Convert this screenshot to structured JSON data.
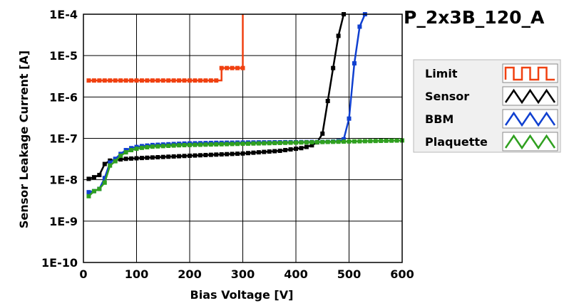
{
  "chart_data": {
    "type": "line",
    "title": "P_2x3B_120_A",
    "xlabel": "Bias Voltage [V]",
    "ylabel": "Sensor Leakage Current [A]",
    "xlim": [
      0,
      600
    ],
    "ylim": [
      1e-10,
      0.0001
    ],
    "y_scale": "log",
    "grid": true,
    "legend_position": "right",
    "x_ticks": [
      {
        "value": 0,
        "label": "0"
      },
      {
        "value": 100,
        "label": "100"
      },
      {
        "value": 200,
        "label": "200"
      },
      {
        "value": 300,
        "label": "300"
      },
      {
        "value": 400,
        "label": "400"
      },
      {
        "value": 500,
        "label": "500"
      },
      {
        "value": 600,
        "label": "600"
      }
    ],
    "y_ticks": [
      {
        "value": 1e-10,
        "label": "1E-10"
      },
      {
        "value": 1e-09,
        "label": "1E-9"
      },
      {
        "value": 1e-08,
        "label": "1E-8"
      },
      {
        "value": 1e-07,
        "label": "1E-7"
      },
      {
        "value": 1e-06,
        "label": "1E-6"
      },
      {
        "value": 1e-05,
        "label": "1E-5"
      },
      {
        "value": 0.0001,
        "label": "1E-4"
      }
    ],
    "series": [
      {
        "name": "Limit",
        "color": "#f04010",
        "step": true,
        "x": [
          10,
          20,
          30,
          40,
          50,
          60,
          70,
          80,
          90,
          100,
          110,
          120,
          130,
          140,
          150,
          160,
          170,
          180,
          190,
          200,
          210,
          220,
          230,
          240,
          250,
          260,
          270,
          280,
          290,
          300,
          300
        ],
        "y": [
          2.5e-06,
          2.5e-06,
          2.5e-06,
          2.5e-06,
          2.5e-06,
          2.5e-06,
          2.5e-06,
          2.5e-06,
          2.5e-06,
          2.5e-06,
          2.5e-06,
          2.5e-06,
          2.5e-06,
          2.5e-06,
          2.5e-06,
          2.5e-06,
          2.5e-06,
          2.5e-06,
          2.5e-06,
          2.5e-06,
          2.5e-06,
          2.5e-06,
          2.5e-06,
          2.5e-06,
          2.5e-06,
          5e-06,
          5e-06,
          5e-06,
          5e-06,
          5e-06,
          0.0001
        ]
      },
      {
        "name": "Sensor",
        "color": "#000000",
        "x": [
          10,
          20,
          30,
          40,
          50,
          60,
          70,
          80,
          90,
          100,
          110,
          120,
          130,
          140,
          150,
          160,
          170,
          180,
          190,
          200,
          210,
          220,
          230,
          240,
          250,
          260,
          270,
          280,
          290,
          300,
          310,
          320,
          330,
          340,
          350,
          360,
          370,
          380,
          390,
          400,
          410,
          420,
          430,
          440,
          450,
          460,
          470,
          480,
          490
        ],
        "y": [
          1.05e-08,
          1.15e-08,
          1.3e-08,
          2.4e-08,
          2.9e-08,
          3e-08,
          3.1e-08,
          3.2e-08,
          3.25e-08,
          3.3e-08,
          3.35e-08,
          3.4e-08,
          3.45e-08,
          3.5e-08,
          3.55e-08,
          3.6e-08,
          3.65e-08,
          3.7e-08,
          3.75e-08,
          3.8e-08,
          3.85e-08,
          3.9e-08,
          3.95e-08,
          4e-08,
          4.05e-08,
          4.1e-08,
          4.15e-08,
          4.2e-08,
          4.25e-08,
          4.3e-08,
          4.4e-08,
          4.5e-08,
          4.6e-08,
          4.7e-08,
          4.8e-08,
          4.9e-08,
          5e-08,
          5.2e-08,
          5.4e-08,
          5.6e-08,
          5.8e-08,
          6.2e-08,
          6.8e-08,
          8e-08,
          1.3e-07,
          8e-07,
          5e-06,
          3e-05,
          0.0001
        ]
      },
      {
        "name": "BBM",
        "color": "#1040d0",
        "x": [
          10,
          20,
          30,
          40,
          50,
          60,
          70,
          80,
          90,
          100,
          110,
          120,
          130,
          140,
          150,
          160,
          170,
          180,
          190,
          200,
          210,
          220,
          230,
          240,
          250,
          260,
          270,
          280,
          290,
          300,
          310,
          320,
          330,
          340,
          350,
          360,
          370,
          380,
          390,
          400,
          410,
          420,
          430,
          440,
          450,
          460,
          470,
          480,
          490,
          500,
          510,
          520,
          530
        ],
        "y": [
          5e-09,
          5.3e-09,
          6e-09,
          1.1e-08,
          2.6e-08,
          3.2e-08,
          4.2e-08,
          5.2e-08,
          5.8e-08,
          6.2e-08,
          6.5e-08,
          6.7e-08,
          6.9e-08,
          7e-08,
          7.1e-08,
          7.2e-08,
          7.3e-08,
          7.4e-08,
          7.5e-08,
          7.55e-08,
          7.6e-08,
          7.65e-08,
          7.7e-08,
          7.75e-08,
          7.8e-08,
          7.8e-08,
          7.85e-08,
          7.85e-08,
          7.9e-08,
          7.9e-08,
          7.95e-08,
          7.95e-08,
          8e-08,
          8e-08,
          8e-08,
          8.05e-08,
          8.05e-08,
          8.1e-08,
          8.1e-08,
          8.1e-08,
          8.15e-08,
          8.15e-08,
          8.2e-08,
          8.2e-08,
          8.25e-08,
          8.3e-08,
          8.4e-08,
          8.6e-08,
          9.5e-08,
          3e-07,
          6.5e-06,
          5e-05,
          0.0001
        ]
      },
      {
        "name": "Plaquette",
        "color": "#30a020",
        "x": [
          10,
          20,
          30,
          40,
          50,
          60,
          70,
          80,
          90,
          100,
          110,
          120,
          130,
          140,
          150,
          160,
          170,
          180,
          190,
          200,
          210,
          220,
          230,
          240,
          250,
          260,
          270,
          280,
          290,
          300,
          310,
          320,
          330,
          340,
          350,
          360,
          370,
          380,
          390,
          400,
          410,
          420,
          430,
          440,
          450,
          460,
          470,
          480,
          490,
          500,
          510,
          520,
          530,
          540,
          550,
          560,
          570,
          580,
          590,
          600
        ],
        "y": [
          4e-09,
          5.3e-09,
          6e-09,
          8.5e-09,
          2.2e-08,
          2.8e-08,
          3.8e-08,
          4.6e-08,
          5.2e-08,
          5.6e-08,
          5.9e-08,
          6.1e-08,
          6.3e-08,
          6.4e-08,
          6.5e-08,
          6.6e-08,
          6.7e-08,
          6.8e-08,
          6.85e-08,
          6.9e-08,
          6.95e-08,
          7e-08,
          7.05e-08,
          7.1e-08,
          7.15e-08,
          7.2e-08,
          7.25e-08,
          7.3e-08,
          7.35e-08,
          7.4e-08,
          7.45e-08,
          7.5e-08,
          7.55e-08,
          7.6e-08,
          7.65e-08,
          7.7e-08,
          7.75e-08,
          7.8e-08,
          7.85e-08,
          7.9e-08,
          7.95e-08,
          8e-08,
          8.05e-08,
          8.1e-08,
          8.15e-08,
          8.2e-08,
          8.25e-08,
          8.3e-08,
          8.35e-08,
          8.4e-08,
          8.45e-08,
          8.5e-08,
          8.55e-08,
          8.6e-08,
          8.65e-08,
          8.7e-08,
          8.75e-08,
          8.8e-08,
          8.85e-08,
          8.9e-08
        ]
      }
    ]
  }
}
